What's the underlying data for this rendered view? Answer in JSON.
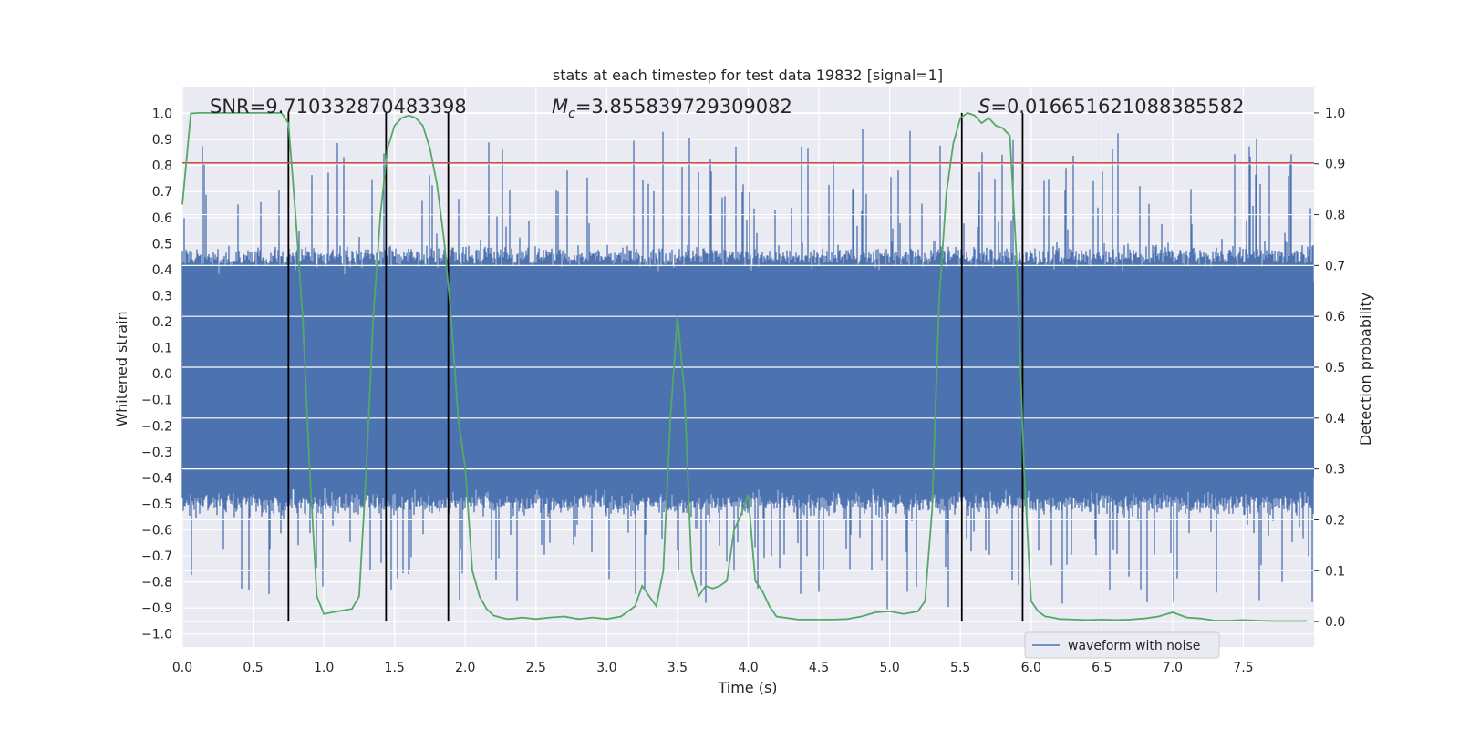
{
  "chart_data": {
    "type": "line",
    "title": "stats at each timestep for test data 19832 [signal=1]",
    "xlabel": "Time (s)",
    "ylabel_left": "Whitened strain",
    "ylabel_right": "Detection probability",
    "xlim": [
      0.0,
      8.0
    ],
    "ylim_left": [
      -1.05,
      1.1
    ],
    "ylim_right": [
      -0.05,
      1.05
    ],
    "x_ticks": [
      0.0,
      0.5,
      1.0,
      1.5,
      2.0,
      2.5,
      3.0,
      3.5,
      4.0,
      4.5,
      5.0,
      5.5,
      6.0,
      6.5,
      7.0,
      7.5
    ],
    "x_tick_labels": [
      "0.0",
      "0.5",
      "1.0",
      "1.5",
      "2.0",
      "2.5",
      "3.0",
      "3.5",
      "4.0",
      "4.5",
      "5.0",
      "5.5",
      "6.0",
      "6.5",
      "7.0",
      "7.5"
    ],
    "y_left_ticks": [
      -1.0,
      -0.9,
      -0.8,
      -0.7,
      -0.6,
      -0.5,
      -0.4,
      -0.3,
      -0.2,
      -0.1,
      0.0,
      0.1,
      0.2,
      0.3,
      0.4,
      0.5,
      0.6,
      0.7,
      0.8,
      0.9,
      1.0
    ],
    "y_left_tick_labels": [
      "−1.0",
      "−0.9",
      "−0.8",
      "−0.7",
      "−0.6",
      "−0.5",
      "−0.4",
      "−0.3",
      "−0.2",
      "−0.1",
      "0.0",
      "0.1",
      "0.2",
      "0.3",
      "0.4",
      "0.5",
      "0.6",
      "0.7",
      "0.8",
      "0.9",
      "1.0"
    ],
    "y_right_ticks": [
      0.0,
      0.1,
      0.2,
      0.3,
      0.4,
      0.5,
      0.6,
      0.7,
      0.8,
      0.9,
      1.0
    ],
    "y_right_tick_labels": [
      "0.0",
      "0.1",
      "0.2",
      "0.3",
      "0.4",
      "0.5",
      "0.6",
      "0.7",
      "0.8",
      "0.9",
      "1.0"
    ],
    "grid": true,
    "legend_placement": "lower-right",
    "annotations": {
      "snr": "SNR=9.710332870483398",
      "mc_symbol": "M",
      "mc_sub": "c",
      "mc_value": "=3.855839729309082",
      "s_symbol": "S",
      "s_value": "=0.016651621088385582"
    },
    "series": [
      {
        "name": "waveform with noise",
        "axis": "left",
        "color": "#4c72b0",
        "band_envelope": {
          "typical_upper": 0.45,
          "typical_lower": -0.5,
          "max_upper": 0.97,
          "min_lower": -0.92,
          "sample_rate_hz": 2048
        }
      },
      {
        "axis": "right",
        "color": "#55a868",
        "x": [
          0.0,
          0.06,
          0.12,
          0.2,
          0.3,
          0.4,
          0.5,
          0.6,
          0.7,
          0.75,
          0.8,
          0.85,
          0.9,
          0.95,
          1.0,
          1.1,
          1.2,
          1.25,
          1.3,
          1.35,
          1.4,
          1.45,
          1.5,
          1.55,
          1.6,
          1.65,
          1.7,
          1.75,
          1.8,
          1.85,
          1.9,
          1.95,
          2.0,
          2.05,
          2.1,
          2.15,
          2.2,
          2.25,
          2.3,
          2.35,
          2.4,
          2.5,
          2.6,
          2.7,
          2.8,
          2.9,
          3.0,
          3.1,
          3.2,
          3.25,
          3.3,
          3.35,
          3.4,
          3.45,
          3.5,
          3.55,
          3.6,
          3.65,
          3.7,
          3.75,
          3.8,
          3.85,
          3.9,
          3.95,
          4.0,
          4.05,
          4.1,
          4.15,
          4.2,
          4.25,
          4.3,
          4.35,
          4.4,
          4.45,
          4.5,
          4.6,
          4.7,
          4.8,
          4.9,
          5.0,
          5.1,
          5.2,
          5.25,
          5.3,
          5.35,
          5.4,
          5.45,
          5.5,
          5.55,
          5.6,
          5.65,
          5.7,
          5.75,
          5.8,
          5.85,
          5.9,
          5.95,
          6.0,
          6.05,
          6.1,
          6.15,
          6.2,
          6.3,
          6.4,
          6.5,
          6.6,
          6.7,
          6.8,
          6.9,
          7.0,
          7.1,
          7.2,
          7.3,
          7.4,
          7.5,
          7.6,
          7.7,
          7.8,
          7.9,
          7.95
        ],
        "y": [
          0.82,
          0.999,
          1.0,
          1.0,
          1.0,
          1.0,
          1.0,
          1.0,
          1.0,
          0.98,
          0.8,
          0.6,
          0.3,
          0.05,
          0.015,
          0.02,
          0.025,
          0.05,
          0.3,
          0.6,
          0.8,
          0.93,
          0.975,
          0.99,
          0.995,
          0.99,
          0.975,
          0.93,
          0.86,
          0.75,
          0.6,
          0.4,
          0.3,
          0.1,
          0.05,
          0.025,
          0.012,
          0.008,
          0.005,
          0.006,
          0.008,
          0.005,
          0.008,
          0.01,
          0.005,
          0.008,
          0.005,
          0.01,
          0.03,
          0.07,
          0.05,
          0.03,
          0.1,
          0.4,
          0.6,
          0.45,
          0.1,
          0.05,
          0.07,
          0.065,
          0.07,
          0.08,
          0.18,
          0.21,
          0.25,
          0.08,
          0.06,
          0.03,
          0.01,
          0.008,
          0.006,
          0.004,
          0.004,
          0.004,
          0.004,
          0.004,
          0.005,
          0.01,
          0.018,
          0.02,
          0.015,
          0.02,
          0.04,
          0.22,
          0.63,
          0.84,
          0.94,
          0.99,
          1.0,
          0.995,
          0.98,
          0.99,
          0.975,
          0.97,
          0.955,
          0.7,
          0.3,
          0.04,
          0.02,
          0.01,
          0.008,
          0.005,
          0.004,
          0.003,
          0.004,
          0.003,
          0.004,
          0.006,
          0.01,
          0.018,
          0.008,
          0.006,
          0.002,
          0.002,
          0.003,
          0.002,
          0.001,
          0.001,
          0.001,
          0.001
        ]
      }
    ],
    "threshold": {
      "axis": "left",
      "value": 0.81,
      "color": "#c44e52"
    },
    "detection_markers": {
      "color": "#000000",
      "x": [
        0.75,
        1.44,
        1.88,
        5.51,
        5.94
      ],
      "y_range_right": [
        0.0,
        1.0
      ]
    }
  }
}
